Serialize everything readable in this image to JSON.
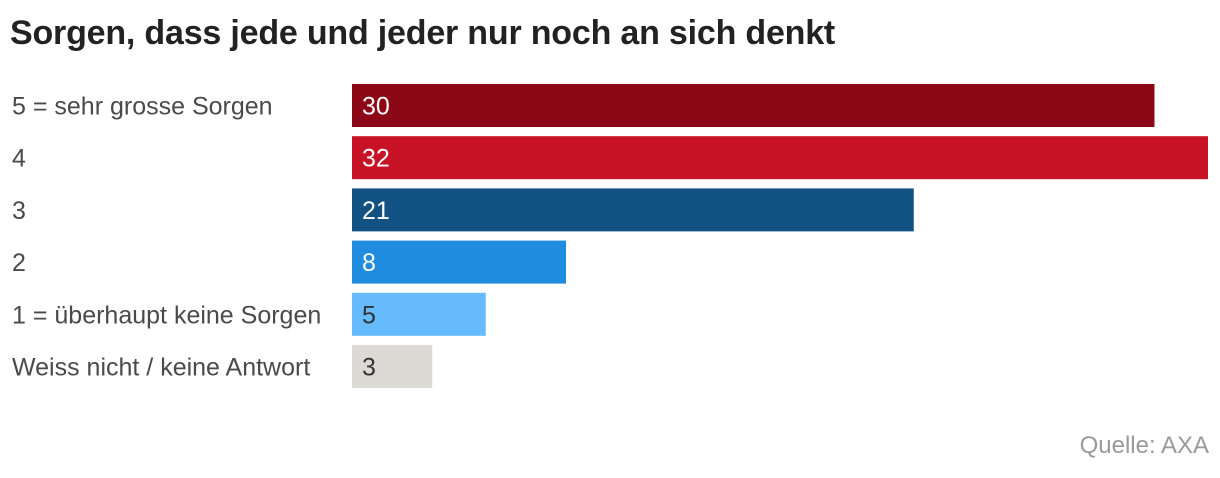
{
  "chart_data": {
    "type": "bar",
    "orientation": "horizontal",
    "title": "Sorgen, dass jede und jeder nur noch an sich denkt",
    "categories": [
      "5 = sehr grosse Sorgen",
      "4",
      "3",
      "2",
      "1 = überhaupt keine Sorgen",
      "Weiss nicht / keine Antwort"
    ],
    "values": [
      30,
      32,
      21,
      8,
      5,
      3
    ],
    "colors": [
      "#8c0817",
      "#c81226",
      "#125283",
      "#208ce0",
      "#65bbfd",
      "#dbdad4"
    ],
    "label_colors": [
      "#ffffff",
      "#ffffff",
      "#ffffff",
      "#ffffff",
      "#333333",
      "#333333"
    ],
    "xlim": [
      0,
      32
    ],
    "grid": false,
    "legend": "none",
    "source": "Quelle: AXA"
  }
}
